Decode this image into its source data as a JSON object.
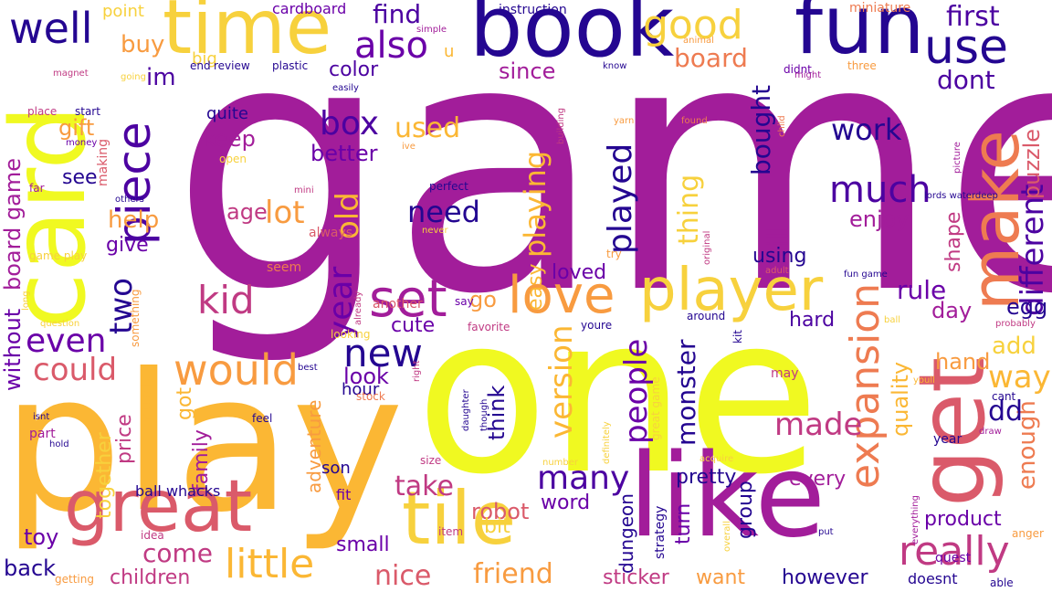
{
  "palette": {
    "deep_purple": "#240691",
    "magenta": "#a21d9a",
    "orchid": "#c03a83",
    "rose": "#da5a6a",
    "coral": "#ee7b51",
    "orange": "#f89b40",
    "amber": "#fbb734",
    "gold": "#f7d13d",
    "yellow": "#f0f921"
  },
  "words": [
    {
      "text": "game",
      "color": "#a21d9a"
    },
    {
      "text": "one",
      "color": "#f0f921"
    },
    {
      "text": "play",
      "color": "#fbb734"
    },
    {
      "text": "book",
      "color": "#240691"
    },
    {
      "text": "fun",
      "color": "#240691"
    },
    {
      "text": "time",
      "color": "#f7d13d"
    },
    {
      "text": "card",
      "color": "#f0f921"
    },
    {
      "text": "get",
      "color": "#da5a6a"
    },
    {
      "text": "make",
      "color": "#ee7b51"
    },
    {
      "text": "like",
      "color": "#a21d9a"
    },
    {
      "text": "great",
      "color": "#da5a6a"
    },
    {
      "text": "tile",
      "color": "#f7d13d"
    },
    {
      "text": "use",
      "color": "#240691"
    },
    {
      "text": "player",
      "color": "#f7d13d"
    },
    {
      "text": "love",
      "color": "#f89b40"
    },
    {
      "text": "set",
      "color": "#a21d9a"
    },
    {
      "text": "new",
      "color": "#240691"
    },
    {
      "text": "would",
      "color": "#f89b40"
    },
    {
      "text": "well",
      "color": "#240691"
    },
    {
      "text": "good",
      "color": "#f7d13d"
    },
    {
      "text": "also",
      "color": "#6a00a8"
    },
    {
      "text": "piece",
      "color": "#4c02a1"
    },
    {
      "text": "kid",
      "color": "#c03a83"
    },
    {
      "text": "expansion",
      "color": "#ee7b51"
    },
    {
      "text": "really",
      "color": "#c03a83"
    },
    {
      "text": "little",
      "color": "#fbb734"
    },
    {
      "text": "much",
      "color": "#4c02a1"
    },
    {
      "text": "even",
      "color": "#6a00a8"
    },
    {
      "text": "could",
      "color": "#da5a6a"
    },
    {
      "text": "version",
      "color": "#fbb734"
    },
    {
      "text": "people",
      "color": "#6a00a8"
    },
    {
      "text": "played",
      "color": "#240691"
    },
    {
      "text": "many",
      "color": "#4c02a1"
    },
    {
      "text": "different",
      "color": "#4c02a1"
    },
    {
      "text": "made",
      "color": "#c03a83"
    },
    {
      "text": "first",
      "color": "#4c02a1"
    },
    {
      "text": "box",
      "color": "#4c02a1"
    },
    {
      "text": "year",
      "color": "#6a00a8"
    },
    {
      "text": "old",
      "color": "#fbb734"
    },
    {
      "text": "way",
      "color": "#fbb734"
    },
    {
      "text": "lot",
      "color": "#f89b40"
    },
    {
      "text": "two",
      "color": "#240691"
    },
    {
      "text": "need",
      "color": "#240691"
    },
    {
      "text": "work",
      "color": "#240691"
    },
    {
      "text": "board",
      "color": "#ee7b51"
    },
    {
      "text": "thing",
      "color": "#f7d13d"
    },
    {
      "text": "still",
      "color": "#a21d9a"
    },
    {
      "text": "bought",
      "color": "#240691"
    },
    {
      "text": "playing",
      "color": "#fbb734"
    },
    {
      "text": "used",
      "color": "#fbb734"
    },
    {
      "text": "come",
      "color": "#c03a83"
    },
    {
      "text": "take",
      "color": "#c03a83"
    },
    {
      "text": "nice",
      "color": "#da5a6a"
    },
    {
      "text": "friend",
      "color": "#f89b40"
    },
    {
      "text": "children",
      "color": "#c03a83"
    },
    {
      "text": "monster",
      "color": "#240691"
    },
    {
      "text": "enough",
      "color": "#ee7b51"
    },
    {
      "text": "rule",
      "color": "#6a00a8"
    },
    {
      "text": "dont",
      "color": "#4c02a1"
    },
    {
      "text": "puzzle",
      "color": "#da5a6a"
    },
    {
      "text": "quality",
      "color": "#fbb734"
    },
    {
      "text": "dd",
      "color": "#240691"
    },
    {
      "text": "add",
      "color": "#f7d13d"
    },
    {
      "text": "buy",
      "color": "#f89b40"
    },
    {
      "text": "find",
      "color": "#4c02a1"
    },
    {
      "text": "im",
      "color": "#4c02a1"
    },
    {
      "text": "color",
      "color": "#4c02a1"
    },
    {
      "text": "since",
      "color": "#a21d9a"
    },
    {
      "text": "better",
      "color": "#6a00a8"
    },
    {
      "text": "keep",
      "color": "#a21d9a"
    },
    {
      "text": "age",
      "color": "#c03a83"
    },
    {
      "text": "enjoy",
      "color": "#a21d9a"
    },
    {
      "text": "help",
      "color": "#f89b40"
    },
    {
      "text": "give",
      "color": "#6a00a8"
    },
    {
      "text": "using",
      "color": "#240691"
    },
    {
      "text": "shape",
      "color": "#c03a83"
    },
    {
      "text": "easy",
      "color": "#fbb734"
    },
    {
      "text": "go",
      "color": "#f89b40"
    },
    {
      "text": "loved",
      "color": "#6a00a8"
    },
    {
      "text": "hard",
      "color": "#4c02a1"
    },
    {
      "text": "egg",
      "color": "#240691"
    },
    {
      "text": "day",
      "color": "#a21d9a"
    },
    {
      "text": "cute",
      "color": "#6a00a8"
    },
    {
      "text": "look",
      "color": "#6a00a8"
    },
    {
      "text": "think",
      "color": "#240691"
    },
    {
      "text": "hand",
      "color": "#f89b40"
    },
    {
      "text": "robot",
      "color": "#da5a6a"
    },
    {
      "text": "word",
      "color": "#6a00a8"
    },
    {
      "text": "pretty",
      "color": "#240691"
    },
    {
      "text": "every",
      "color": "#a21d9a"
    },
    {
      "text": "turn",
      "color": "#6a00a8"
    },
    {
      "text": "group",
      "color": "#240691"
    },
    {
      "text": "product",
      "color": "#6a00a8"
    },
    {
      "text": "sticker",
      "color": "#c03a83"
    },
    {
      "text": "want",
      "color": "#f89b40"
    },
    {
      "text": "however",
      "color": "#240691"
    },
    {
      "text": "small",
      "color": "#6a00a8"
    },
    {
      "text": "bit",
      "color": "#f7d13d"
    },
    {
      "text": "back",
      "color": "#240691"
    },
    {
      "text": "toy",
      "color": "#6a00a8"
    },
    {
      "text": "got",
      "color": "#fbb734"
    },
    {
      "text": "price",
      "color": "#c03a83"
    },
    {
      "text": "family",
      "color": "#a21d9a"
    },
    {
      "text": "together",
      "color": "#f7d13d"
    },
    {
      "text": "adventure",
      "color": "#f89b40"
    },
    {
      "text": "without",
      "color": "#6a00a8"
    },
    {
      "text": "board game",
      "color": "#a21d9a"
    },
    {
      "text": "gift",
      "color": "#f89b40"
    },
    {
      "text": "see",
      "color": "#240691"
    },
    {
      "text": "quite",
      "color": "#240691"
    },
    {
      "text": "hour",
      "color": "#240691"
    },
    {
      "text": "son",
      "color": "#240691"
    },
    {
      "text": "fit",
      "color": "#6a00a8"
    },
    {
      "text": "dungeon",
      "color": "#240691"
    },
    {
      "text": "strategy",
      "color": "#240691"
    },
    {
      "text": "doesnt",
      "color": "#240691"
    },
    {
      "text": "ball whacks",
      "color": "#240691"
    },
    {
      "text": "point",
      "color": "#f7d13d"
    },
    {
      "text": "big",
      "color": "#f7d13d"
    },
    {
      "text": "cardboard",
      "color": "#6a00a8"
    },
    {
      "text": "instruction",
      "color": "#240691"
    },
    {
      "text": "miniature",
      "color": "#ee7b51"
    },
    {
      "text": "end",
      "color": "#240691"
    },
    {
      "text": "review",
      "color": "#240691"
    },
    {
      "text": "plastic",
      "color": "#240691"
    },
    {
      "text": "simple",
      "color": "#a21d9a"
    },
    {
      "text": "u",
      "color": "#fbb734"
    },
    {
      "text": "animal",
      "color": "#f89b40"
    },
    {
      "text": "three",
      "color": "#f89b40"
    },
    {
      "text": "didnt",
      "color": "#6a00a8"
    },
    {
      "text": "might",
      "color": "#a21d9a"
    },
    {
      "text": "magnet",
      "color": "#c03a83"
    },
    {
      "text": "going",
      "color": "#f7d13d"
    },
    {
      "text": "know",
      "color": "#240691"
    },
    {
      "text": "easily",
      "color": "#240691"
    },
    {
      "text": "place",
      "color": "#c03a83"
    },
    {
      "text": "start",
      "color": "#240691"
    },
    {
      "text": "money",
      "color": "#6a00a8"
    },
    {
      "text": "making",
      "color": "#da5a6a"
    },
    {
      "text": "open",
      "color": "#f7d13d"
    },
    {
      "text": "far",
      "color": "#a21d9a"
    },
    {
      "text": "others",
      "color": "#240691"
    },
    {
      "text": "mini",
      "color": "#c03a83"
    },
    {
      "text": "yarn",
      "color": "#f89b40"
    },
    {
      "text": "ive",
      "color": "#f89b40"
    },
    {
      "text": "found",
      "color": "#ee7b51"
    },
    {
      "text": "child",
      "color": "#ee7b51"
    },
    {
      "text": "building",
      "color": "#c03a83"
    },
    {
      "text": "perfect",
      "color": "#240691"
    },
    {
      "text": "picture",
      "color": "#a21d9a"
    },
    {
      "text": "lords waterdeep",
      "color": "#240691"
    },
    {
      "text": "game play",
      "color": "#f7d13d"
    },
    {
      "text": "long",
      "color": "#f7d13d"
    },
    {
      "text": "always",
      "color": "#da5a6a"
    },
    {
      "text": "never",
      "color": "#f7d13d"
    },
    {
      "text": "seem",
      "color": "#ee7b51"
    },
    {
      "text": "original",
      "color": "#c03a83"
    },
    {
      "text": "try",
      "color": "#f89b40"
    },
    {
      "text": "adult",
      "color": "#da5a6a"
    },
    {
      "text": "fun game",
      "color": "#240691"
    },
    {
      "text": "question",
      "color": "#f7d13d"
    },
    {
      "text": "something",
      "color": "#f89b40"
    },
    {
      "text": "already",
      "color": "#c03a83"
    },
    {
      "text": "another",
      "color": "#da5a6a"
    },
    {
      "text": "say",
      "color": "#6a00a8"
    },
    {
      "text": "favorite",
      "color": "#c03a83"
    },
    {
      "text": "youre",
      "color": "#240691"
    },
    {
      "text": "around",
      "color": "#240691"
    },
    {
      "text": "kit",
      "color": "#240691"
    },
    {
      "text": "ball",
      "color": "#f7d13d"
    },
    {
      "text": "probably",
      "color": "#c03a83"
    },
    {
      "text": "looking",
      "color": "#f7d13d"
    },
    {
      "text": "best",
      "color": "#240691"
    },
    {
      "text": "right",
      "color": "#c03a83"
    },
    {
      "text": "stock",
      "color": "#ee7b51"
    },
    {
      "text": "may",
      "color": "#c03a83"
    },
    {
      "text": "youll",
      "color": "#fbb734"
    },
    {
      "text": "cant",
      "color": "#240691"
    },
    {
      "text": "isnt",
      "color": "#240691"
    },
    {
      "text": "actually",
      "color": "#fbb734"
    },
    {
      "text": "feel",
      "color": "#240691"
    },
    {
      "text": "daughter",
      "color": "#240691"
    },
    {
      "text": "though",
      "color": "#240691"
    },
    {
      "text": "definitely",
      "color": "#f7d13d"
    },
    {
      "text": "great game",
      "color": "#f7d13d"
    },
    {
      "text": "part",
      "color": "#a21d9a"
    },
    {
      "text": "hold",
      "color": "#240691"
    },
    {
      "text": "size",
      "color": "#c03a83"
    },
    {
      "text": "number",
      "color": "#f7d13d"
    },
    {
      "text": "acquire",
      "color": "#f7d13d"
    },
    {
      "text": "draw",
      "color": "#a21d9a"
    },
    {
      "text": "year",
      "color": "#240691"
    },
    {
      "text": "everything",
      "color": "#a21d9a"
    },
    {
      "text": "idea",
      "color": "#c03a83"
    },
    {
      "text": "item",
      "color": "#c03a83"
    },
    {
      "text": "overall",
      "color": "#f7d13d"
    },
    {
      "text": "put",
      "color": "#240691"
    },
    {
      "text": "quest",
      "color": "#6a00a8"
    },
    {
      "text": "anger",
      "color": "#f89b40"
    },
    {
      "text": "getting",
      "color": "#f89b40"
    },
    {
      "text": "able",
      "color": "#240691"
    }
  ]
}
